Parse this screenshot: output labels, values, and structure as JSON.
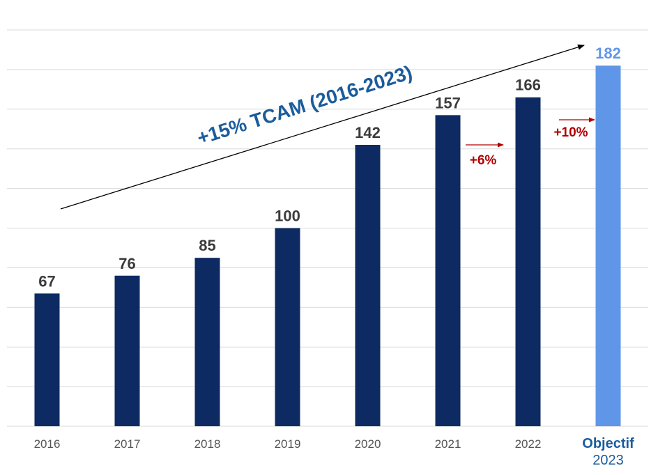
{
  "colors": {
    "bar_actual": "#0d2b62",
    "bar_target": "#6096e8",
    "value_label": "#3b3b3b",
    "target_label": "#6096e8",
    "axis_label": "#555555",
    "target_axis_label": "#1b5c9b",
    "trend_text": "#1b5c9b",
    "growth_text": "#b00000",
    "gridline": "#d9d9d9"
  },
  "chart_data": {
    "type": "bar",
    "categories": [
      "2016",
      "2017",
      "2018",
      "2019",
      "2020",
      "2021",
      "2022",
      "Objectif 2023"
    ],
    "category_lines": [
      [
        "2016"
      ],
      [
        "2017"
      ],
      [
        "2018"
      ],
      [
        "2019"
      ],
      [
        "2020"
      ],
      [
        "2021"
      ],
      [
        "2022"
      ],
      [
        "Objectif",
        "2023"
      ]
    ],
    "values": [
      67,
      76,
      85,
      100,
      142,
      157,
      166,
      182
    ],
    "highlight_index": 7,
    "ylim": [
      0,
      200
    ],
    "grid": true,
    "annotations": {
      "trend_label": "+15% TCAM (2016-2023)",
      "growth": [
        {
          "label": "+6%",
          "from": "2021",
          "to": "2022"
        },
        {
          "label": "+10%",
          "from": "2022",
          "to": "Objectif 2023"
        }
      ]
    }
  }
}
